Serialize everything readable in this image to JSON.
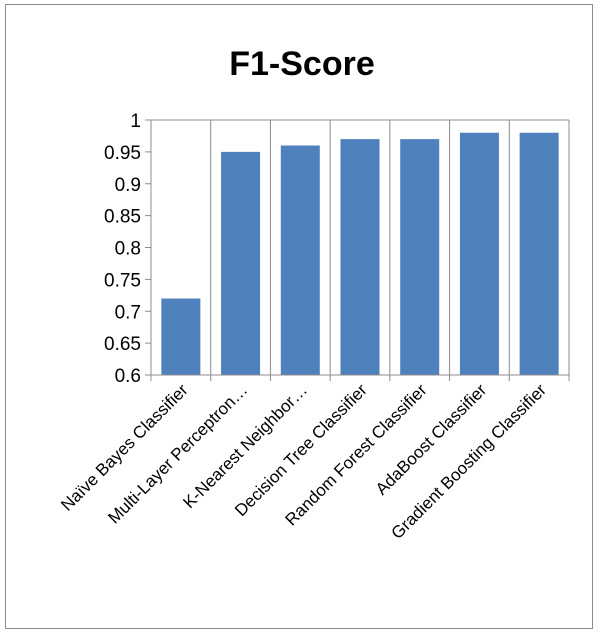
{
  "chart_data": {
    "type": "bar",
    "title": "F1-Score",
    "categories": [
      "Naïve Bayes Classifier",
      "Multi-Layer Perceptron…",
      "K-Nearest Neighbor…",
      "Decision Tree Classifier",
      "Random Forest Classifier",
      "AdaBoost Classifier",
      "Gradient Boosting Classifier"
    ],
    "values": [
      0.72,
      0.95,
      0.96,
      0.97,
      0.97,
      0.98,
      0.98
    ],
    "ylim": [
      0.6,
      1
    ],
    "yticks": [
      "0.6",
      "0.65",
      "0.7",
      "0.75",
      "0.8",
      "0.85",
      "0.9",
      "0.95",
      "1"
    ],
    "grid": "vertical category lines",
    "legend": "none",
    "bar_color": "#4f81bd",
    "xlabel": "",
    "ylabel": ""
  }
}
